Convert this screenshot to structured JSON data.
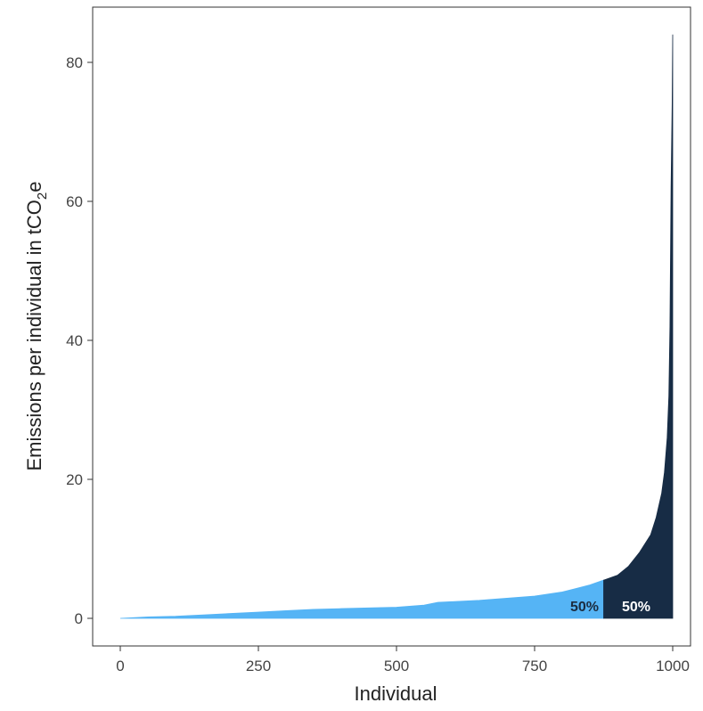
{
  "chart_data": {
    "type": "area",
    "xlabel": "Individual",
    "ylabel": "Emissions per individual in tCO",
    "ylabel_subscript": "2",
    "ylabel_suffix": "e",
    "xlim": [
      0,
      1000
    ],
    "ylim": [
      -4,
      88
    ],
    "x_ticks": [
      0,
      250,
      500,
      750,
      1000
    ],
    "y_ticks": [
      0,
      20,
      40,
      60,
      80
    ],
    "x_tick_labels": [
      "0",
      "250",
      "500",
      "750",
      "1000"
    ],
    "y_tick_labels": [
      "0",
      "20",
      "40",
      "60",
      "80"
    ],
    "grid": false,
    "split_x": 875,
    "series": [
      {
        "label": "50%",
        "color": "#55b4f5",
        "x": [
          0,
          50,
          100,
          150,
          200,
          250,
          300,
          350,
          400,
          450,
          500,
          550,
          575,
          600,
          650,
          700,
          750,
          800,
          825,
          850,
          875
        ],
        "y": [
          0,
          0.2,
          0.3,
          0.5,
          0.7,
          0.9,
          1.1,
          1.3,
          1.4,
          1.5,
          1.6,
          1.9,
          2.3,
          2.4,
          2.6,
          2.9,
          3.2,
          3.8,
          4.3,
          4.8,
          5.5
        ]
      },
      {
        "label": "50%",
        "color": "#172c45",
        "x": [
          875,
          900,
          920,
          940,
          960,
          970,
          980,
          985,
          990,
          993,
          995,
          996,
          997,
          998,
          999,
          1000
        ],
        "y": [
          5.5,
          6.2,
          7.5,
          9.5,
          12,
          14.5,
          18,
          21,
          26,
          32,
          42,
          52,
          62,
          68,
          74,
          84
        ]
      }
    ]
  }
}
